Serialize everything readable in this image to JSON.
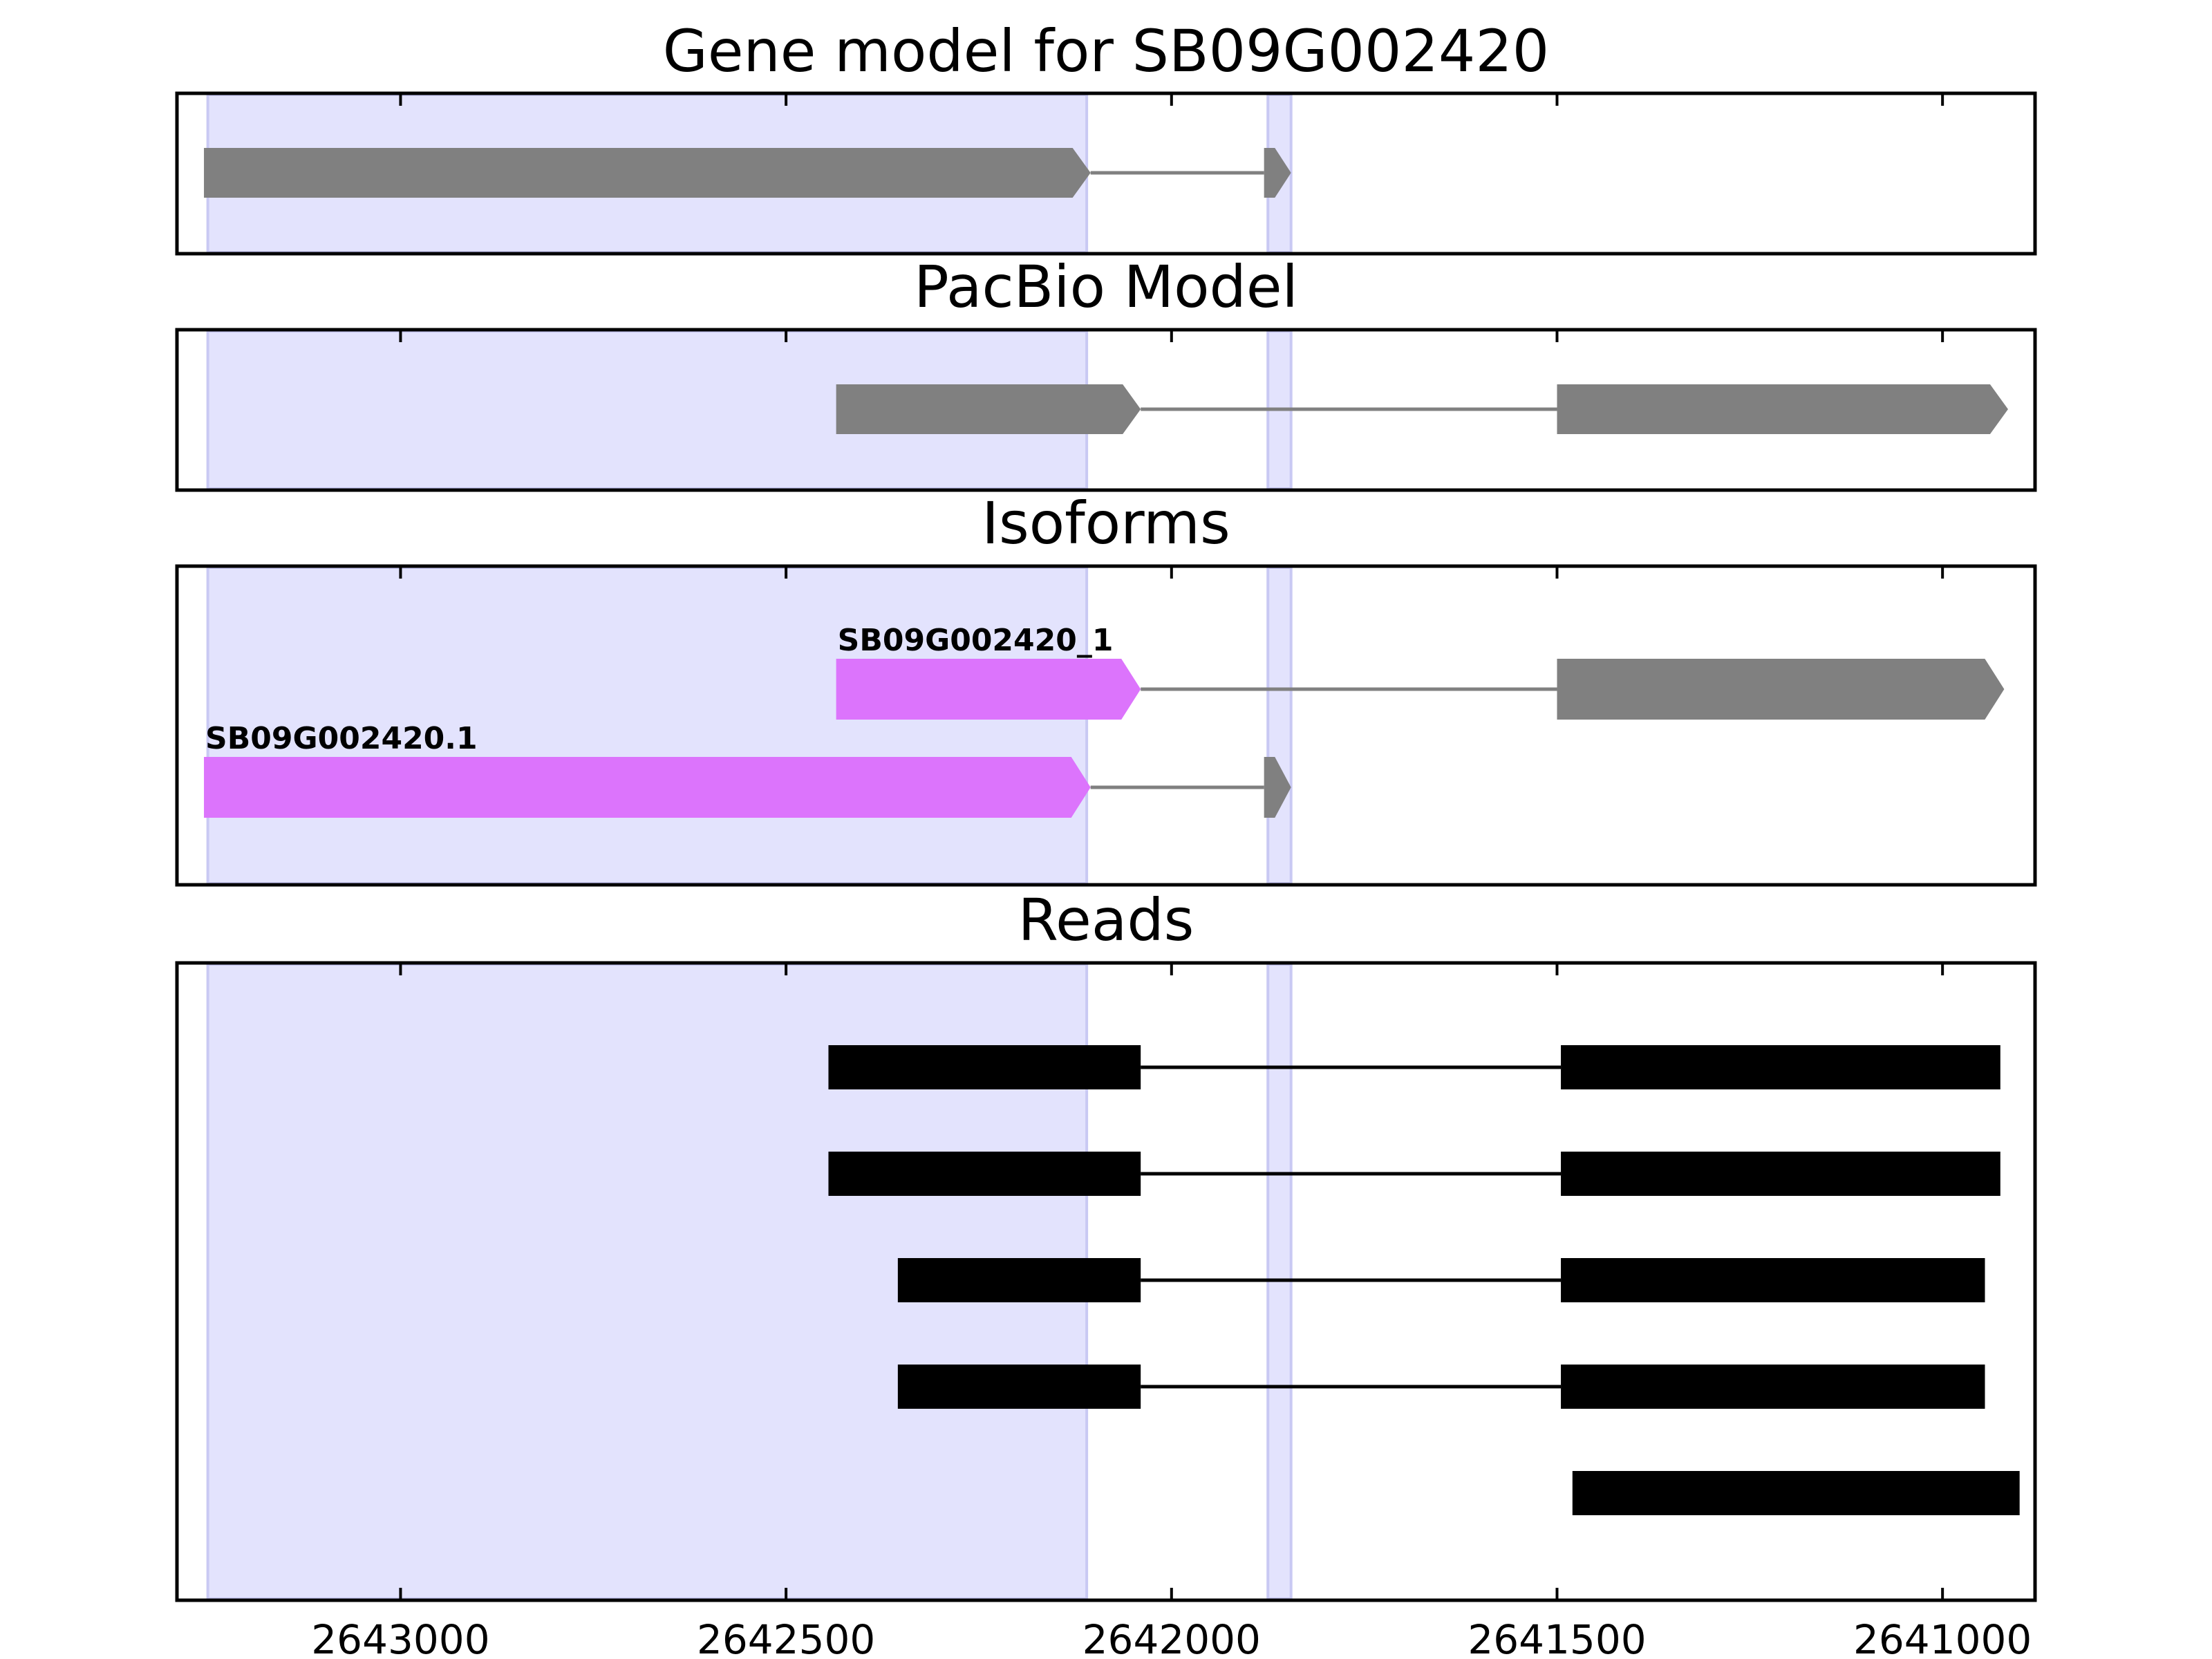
{
  "colors": {
    "highlight": "#e3e3fd",
    "highlight_edge": "#c9c9f3",
    "exon": "#808080",
    "intron": "#808080",
    "isoform_match": "#dc74fc",
    "read": "#000000",
    "frame": "#000000"
  },
  "chart_data": {
    "type": "gene_track",
    "xlim": [
      2643290,
      2640880
    ],
    "x_reversed": true,
    "x_ticks": [
      2643000,
      2642500,
      2642000,
      2641500,
      2641000
    ],
    "x_tick_labels": [
      "2643000",
      "2642500",
      "2642000",
      "2641500",
      "2641000"
    ],
    "highlight_regions": [
      [
        2643250,
        2642110
      ],
      [
        2641875,
        2641845
      ]
    ],
    "panels": [
      {
        "id": "gene-model",
        "title": "Gene model for SB09G002420",
        "row_count": 1,
        "features": [
          {
            "row": 0,
            "label": "",
            "highlight_exon": null,
            "exons": [
              [
                2643255,
                2642105
              ],
              [
                2641880,
                2641845
              ]
            ]
          }
        ]
      },
      {
        "id": "pacbio-model",
        "title": "PacBio Model",
        "row_count": 1,
        "features": [
          {
            "row": 0,
            "label": "",
            "highlight_exon": null,
            "exons": [
              [
                2642435,
                2642040
              ],
              [
                2641500,
                2640915
              ]
            ]
          }
        ]
      },
      {
        "id": "isoforms",
        "title": "Isoforms",
        "row_count": 2,
        "features": [
          {
            "row": 0,
            "label": "SB09G002420_1",
            "highlight_exon": 0,
            "exons": [
              [
                2642435,
                2642040
              ],
              [
                2641500,
                2640920
              ]
            ]
          },
          {
            "row": 1,
            "label": "SB09G002420.1",
            "highlight_exon": 0,
            "exons": [
              [
                2643255,
                2642105
              ],
              [
                2641880,
                2641845
              ]
            ]
          }
        ]
      },
      {
        "id": "reads",
        "title": "Reads",
        "row_count": 5,
        "reads": [
          {
            "row": 0,
            "exons": [
              [
                2642445,
                2642040
              ],
              [
                2641495,
                2640925
              ]
            ]
          },
          {
            "row": 1,
            "exons": [
              [
                2642445,
                2642040
              ],
              [
                2641495,
                2640925
              ]
            ]
          },
          {
            "row": 2,
            "exons": [
              [
                2642355,
                2642040
              ],
              [
                2641495,
                2640945
              ]
            ]
          },
          {
            "row": 3,
            "exons": [
              [
                2642355,
                2642040
              ],
              [
                2641495,
                2640945
              ]
            ]
          },
          {
            "row": 4,
            "exons": [
              [
                2641480,
                2640900
              ]
            ]
          }
        ]
      }
    ]
  }
}
